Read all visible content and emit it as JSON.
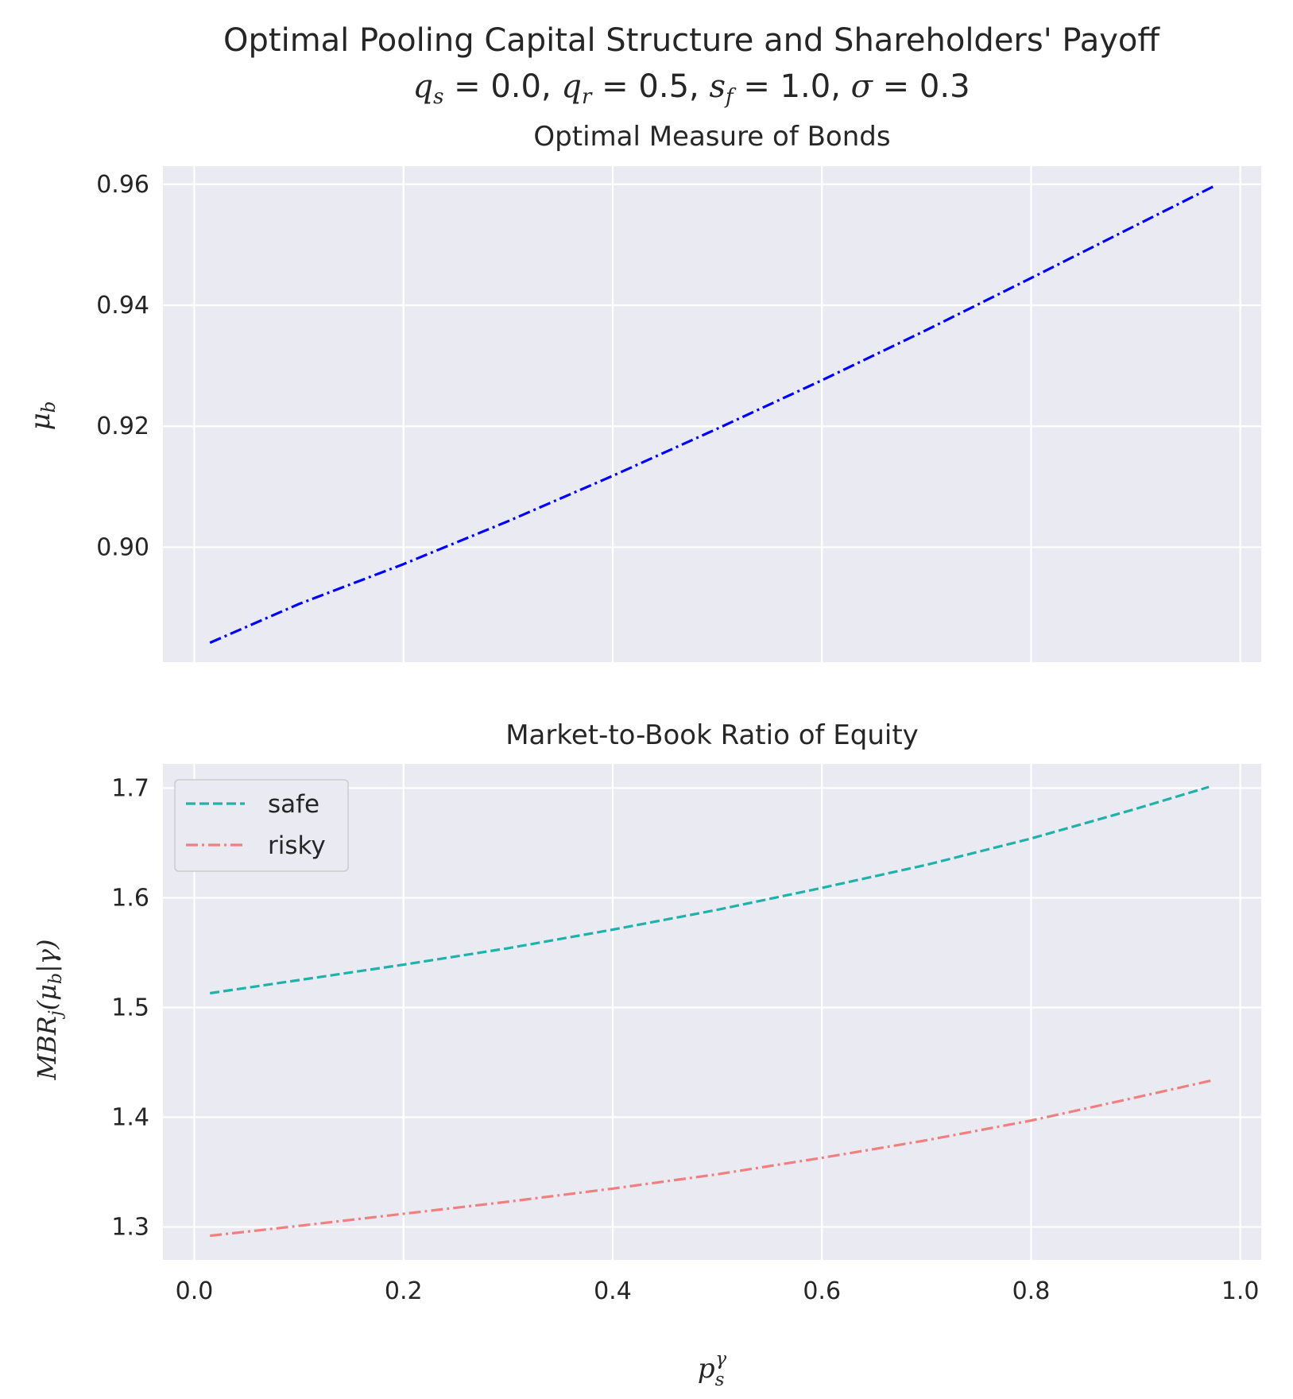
{
  "figure": {
    "title": "Optimal Pooling Capital Structure and Shareholders' Payoff",
    "params": {
      "q_s": "0.0",
      "q_r": "0.5",
      "s_f": "1.0",
      "sigma": "0.3"
    },
    "xlabel": "p_s^γ"
  },
  "chart_data": [
    {
      "type": "line",
      "title": "Optimal Measure of Bonds",
      "ylabel": "μ_b",
      "xlim": [
        -0.03,
        1.02
      ],
      "ylim": [
        0.881,
        0.963
      ],
      "xticks": [
        0.0,
        0.2,
        0.4,
        0.6,
        0.8,
        1.0
      ],
      "xtick_labels": [
        "0.0",
        "0.2",
        "0.4",
        "0.6",
        "0.8",
        "1.0"
      ],
      "yticks": [
        0.9,
        0.92,
        0.94,
        0.96
      ],
      "ytick_labels": [
        "0.90",
        "0.92",
        "0.94",
        "0.96"
      ],
      "grid": true,
      "series": [
        {
          "color": "#0000ff",
          "style": "dashdot",
          "x": [
            0.015,
            0.1,
            0.2,
            0.3,
            0.4,
            0.5,
            0.6,
            0.7,
            0.8,
            0.9,
            0.975
          ],
          "y": [
            0.8842,
            0.8906,
            0.8972,
            0.9043,
            0.9118,
            0.9196,
            0.9276,
            0.9359,
            0.9445,
            0.9532,
            0.9597
          ]
        }
      ]
    },
    {
      "type": "line",
      "title": "Market-to-Book Ratio of Equity",
      "ylabel": "MBR_j(μ_b|γ)",
      "xlim": [
        -0.03,
        1.02
      ],
      "ylim": [
        1.27,
        1.722
      ],
      "xticks": [
        0.0,
        0.2,
        0.4,
        0.6,
        0.8,
        1.0
      ],
      "xtick_labels": [
        "0.0",
        "0.2",
        "0.4",
        "0.6",
        "0.8",
        "1.0"
      ],
      "yticks": [
        1.3,
        1.4,
        1.5,
        1.6,
        1.7
      ],
      "ytick_labels": [
        "1.3",
        "1.4",
        "1.5",
        "1.6",
        "1.7"
      ],
      "grid": true,
      "legend": "top-left",
      "series": [
        {
          "name": "safe",
          "color": "#20b2aa",
          "style": "dashed",
          "x": [
            0.015,
            0.1,
            0.2,
            0.3,
            0.4,
            0.5,
            0.6,
            0.7,
            0.8,
            0.9,
            0.97
          ],
          "y": [
            1.513,
            1.525,
            1.539,
            1.554,
            1.571,
            1.589,
            1.609,
            1.63,
            1.654,
            1.681,
            1.701
          ]
        },
        {
          "name": "risky",
          "color": "#f08080",
          "style": "dashdot",
          "x": [
            0.015,
            0.1,
            0.2,
            0.3,
            0.4,
            0.5,
            0.6,
            0.7,
            0.8,
            0.9,
            0.975
          ],
          "y": [
            1.292,
            1.301,
            1.312,
            1.323,
            1.335,
            1.348,
            1.363,
            1.379,
            1.397,
            1.418,
            1.434
          ]
        }
      ]
    }
  ]
}
